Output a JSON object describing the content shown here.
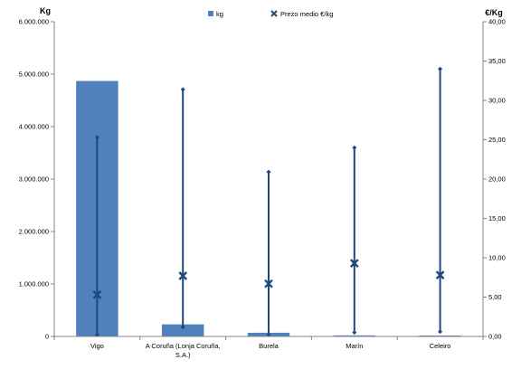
{
  "chart_data": {
    "type": "bar",
    "categories": [
      "Vigo",
      "A Coruña (Lonja Coruña, S.A.)",
      "Burela",
      "Marín",
      "Celeiro"
    ],
    "category_labels": [
      [
        "Vigo"
      ],
      [
        "A Coruña (Lonja Coruña,",
        "S.A.)"
      ],
      [
        "Burela"
      ],
      [
        "Marín"
      ],
      [
        "Celeiro"
      ]
    ],
    "left_axis": {
      "title": "Kg",
      "ylim": [
        0,
        6000000
      ],
      "ticks": [
        0,
        1000000,
        2000000,
        3000000,
        4000000,
        5000000,
        6000000
      ],
      "tick_labels": [
        "0",
        "1.000.000",
        "2.000.000",
        "3.000.000",
        "4.000.000",
        "5.000.000",
        "6.000.000"
      ]
    },
    "right_axis": {
      "title": "€/Kg",
      "ylim": [
        0,
        40
      ],
      "ticks": [
        0,
        5,
        10,
        15,
        20,
        25,
        30,
        35,
        40
      ],
      "tick_labels": [
        "0,00",
        "5,00",
        "10,00",
        "15,00",
        "20,00",
        "25,00",
        "30,00",
        "35,00",
        "40,00"
      ]
    },
    "series": [
      {
        "name": "kg",
        "kind": "bar",
        "axis": "left",
        "color": "#4f81bd",
        "values": [
          4870000,
          230000,
          70000,
          20000,
          15000
        ]
      },
      {
        "name": "Prezo medio €/kg",
        "kind": "marker-range",
        "axis": "right",
        "color": "#1f497d",
        "values": [
          5.3,
          7.7,
          6.7,
          9.3,
          7.8
        ],
        "low": [
          0.2,
          1.2,
          0.2,
          0.5,
          0.6
        ],
        "high": [
          25.3,
          31.4,
          20.9,
          24.0,
          34.0
        ]
      }
    ],
    "grid": false,
    "legend_position": "top-center"
  }
}
